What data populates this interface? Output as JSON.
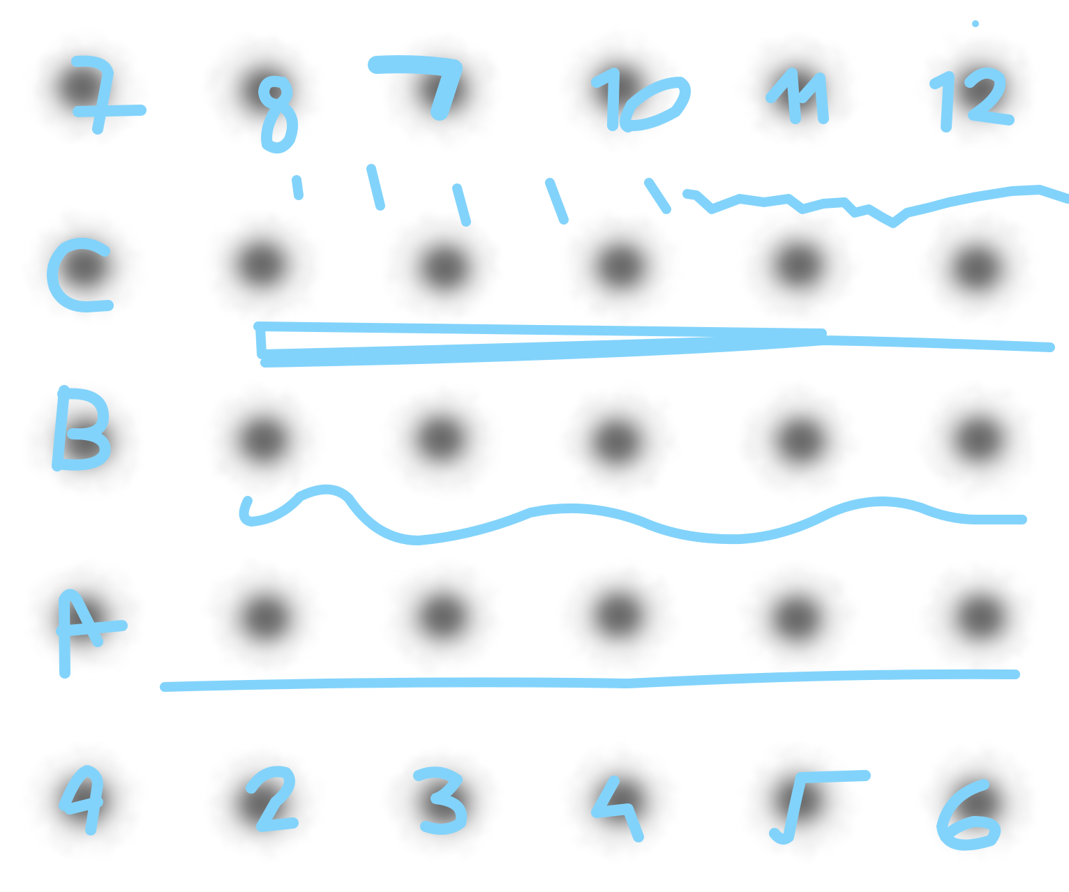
{
  "sheet": {
    "background_color": "#ffffff",
    "smoke_color": "#5a5a5a",
    "ink_color": "#82d3fb",
    "rows": [
      {
        "name": "top",
        "label": "",
        "numbers": [
          "7",
          "8",
          "9",
          "10",
          "11",
          "12"
        ]
      },
      {
        "name": "C",
        "label": "C",
        "numbers": []
      },
      {
        "name": "B",
        "label": "B",
        "numbers": []
      },
      {
        "name": "A",
        "label": "A",
        "numbers": []
      },
      {
        "name": "bottom",
        "label": "",
        "numbers": [
          "1",
          "2",
          "3",
          "4",
          "5",
          "6"
        ]
      }
    ],
    "smoke_icon": "smoke-puff-icon",
    "stroke_icons": [
      "tick-marks-icon",
      "zigzag-line-icon",
      "double-straight-line-icon",
      "wavy-line-icon",
      "straight-line-icon"
    ]
  }
}
